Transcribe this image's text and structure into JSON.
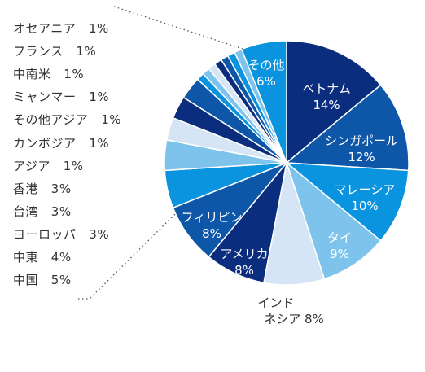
{
  "chart_data": {
    "type": "pie",
    "title": "",
    "slices": [
      {
        "label": "ベトナム",
        "value": 14,
        "display": "14%",
        "color": "#0b2d7e"
      },
      {
        "label": "シンガポール",
        "value": 12,
        "display": "12%",
        "color": "#0d56a8"
      },
      {
        "label": "マレーシア",
        "value": 10,
        "display": "10%",
        "color": "#0a93df"
      },
      {
        "label": "タイ",
        "value": 9,
        "display": "9%",
        "color": "#7ec3ec"
      },
      {
        "label": "インド\nネシア",
        "value": 8,
        "display": "8%",
        "color": "#d6e5f5"
      },
      {
        "label": "アメリカ",
        "value": 8,
        "display": "8%",
        "color": "#0b2d7e"
      },
      {
        "label": "フィリピン",
        "value": 8,
        "display": "8%",
        "color": "#0d56a8"
      },
      {
        "label": "中国",
        "value": 5,
        "display": "5%",
        "color": "#0a93df"
      },
      {
        "label": "中東",
        "value": 4,
        "display": "4%",
        "color": "#7ec3ec"
      },
      {
        "label": "ヨーロッパ",
        "value": 3,
        "display": "3%",
        "color": "#d6e5f5"
      },
      {
        "label": "台湾",
        "value": 3,
        "display": "3%",
        "color": "#0b2d7e"
      },
      {
        "label": "香港",
        "value": 3,
        "display": "3%",
        "color": "#0d56a8"
      },
      {
        "label": "アジア",
        "value": 1,
        "display": "1%",
        "color": "#0a93df"
      },
      {
        "label": "カンボジア",
        "value": 1,
        "display": "1%",
        "color": "#7ec3ec"
      },
      {
        "label": "その他アジア",
        "value": 1,
        "display": "1%",
        "color": "#d6e5f5"
      },
      {
        "label": "ミャンマー",
        "value": 1,
        "display": "1%",
        "color": "#0b2d7e"
      },
      {
        "label": "中南米",
        "value": 1,
        "display": "1%",
        "color": "#0d56a8"
      },
      {
        "label": "フランス",
        "value": 1,
        "display": "1%",
        "color": "#0a93df"
      },
      {
        "label": "オセアニア",
        "value": 1,
        "display": "1%",
        "color": "#7ec3ec"
      },
      {
        "label": "その他",
        "value": 6,
        "display": "6%",
        "color": "#0a93df"
      }
    ],
    "breakout_legend": [
      {
        "label": "オセアニア",
        "display": "1%"
      },
      {
        "label": "フランス",
        "display": "1%"
      },
      {
        "label": "中南米",
        "display": "1%"
      },
      {
        "label": "ミャンマー",
        "display": "1%"
      },
      {
        "label": "その他アジア",
        "display": "1%"
      },
      {
        "label": "カンボジア",
        "display": "1%"
      },
      {
        "label": "アジア",
        "display": "1%"
      },
      {
        "label": "香港",
        "display": "3%"
      },
      {
        "label": "台湾",
        "display": "3%"
      },
      {
        "label": "ヨーロッパ",
        "display": "3%"
      },
      {
        "label": "中東",
        "display": "4%"
      },
      {
        "label": "中国",
        "display": "5%"
      }
    ]
  }
}
